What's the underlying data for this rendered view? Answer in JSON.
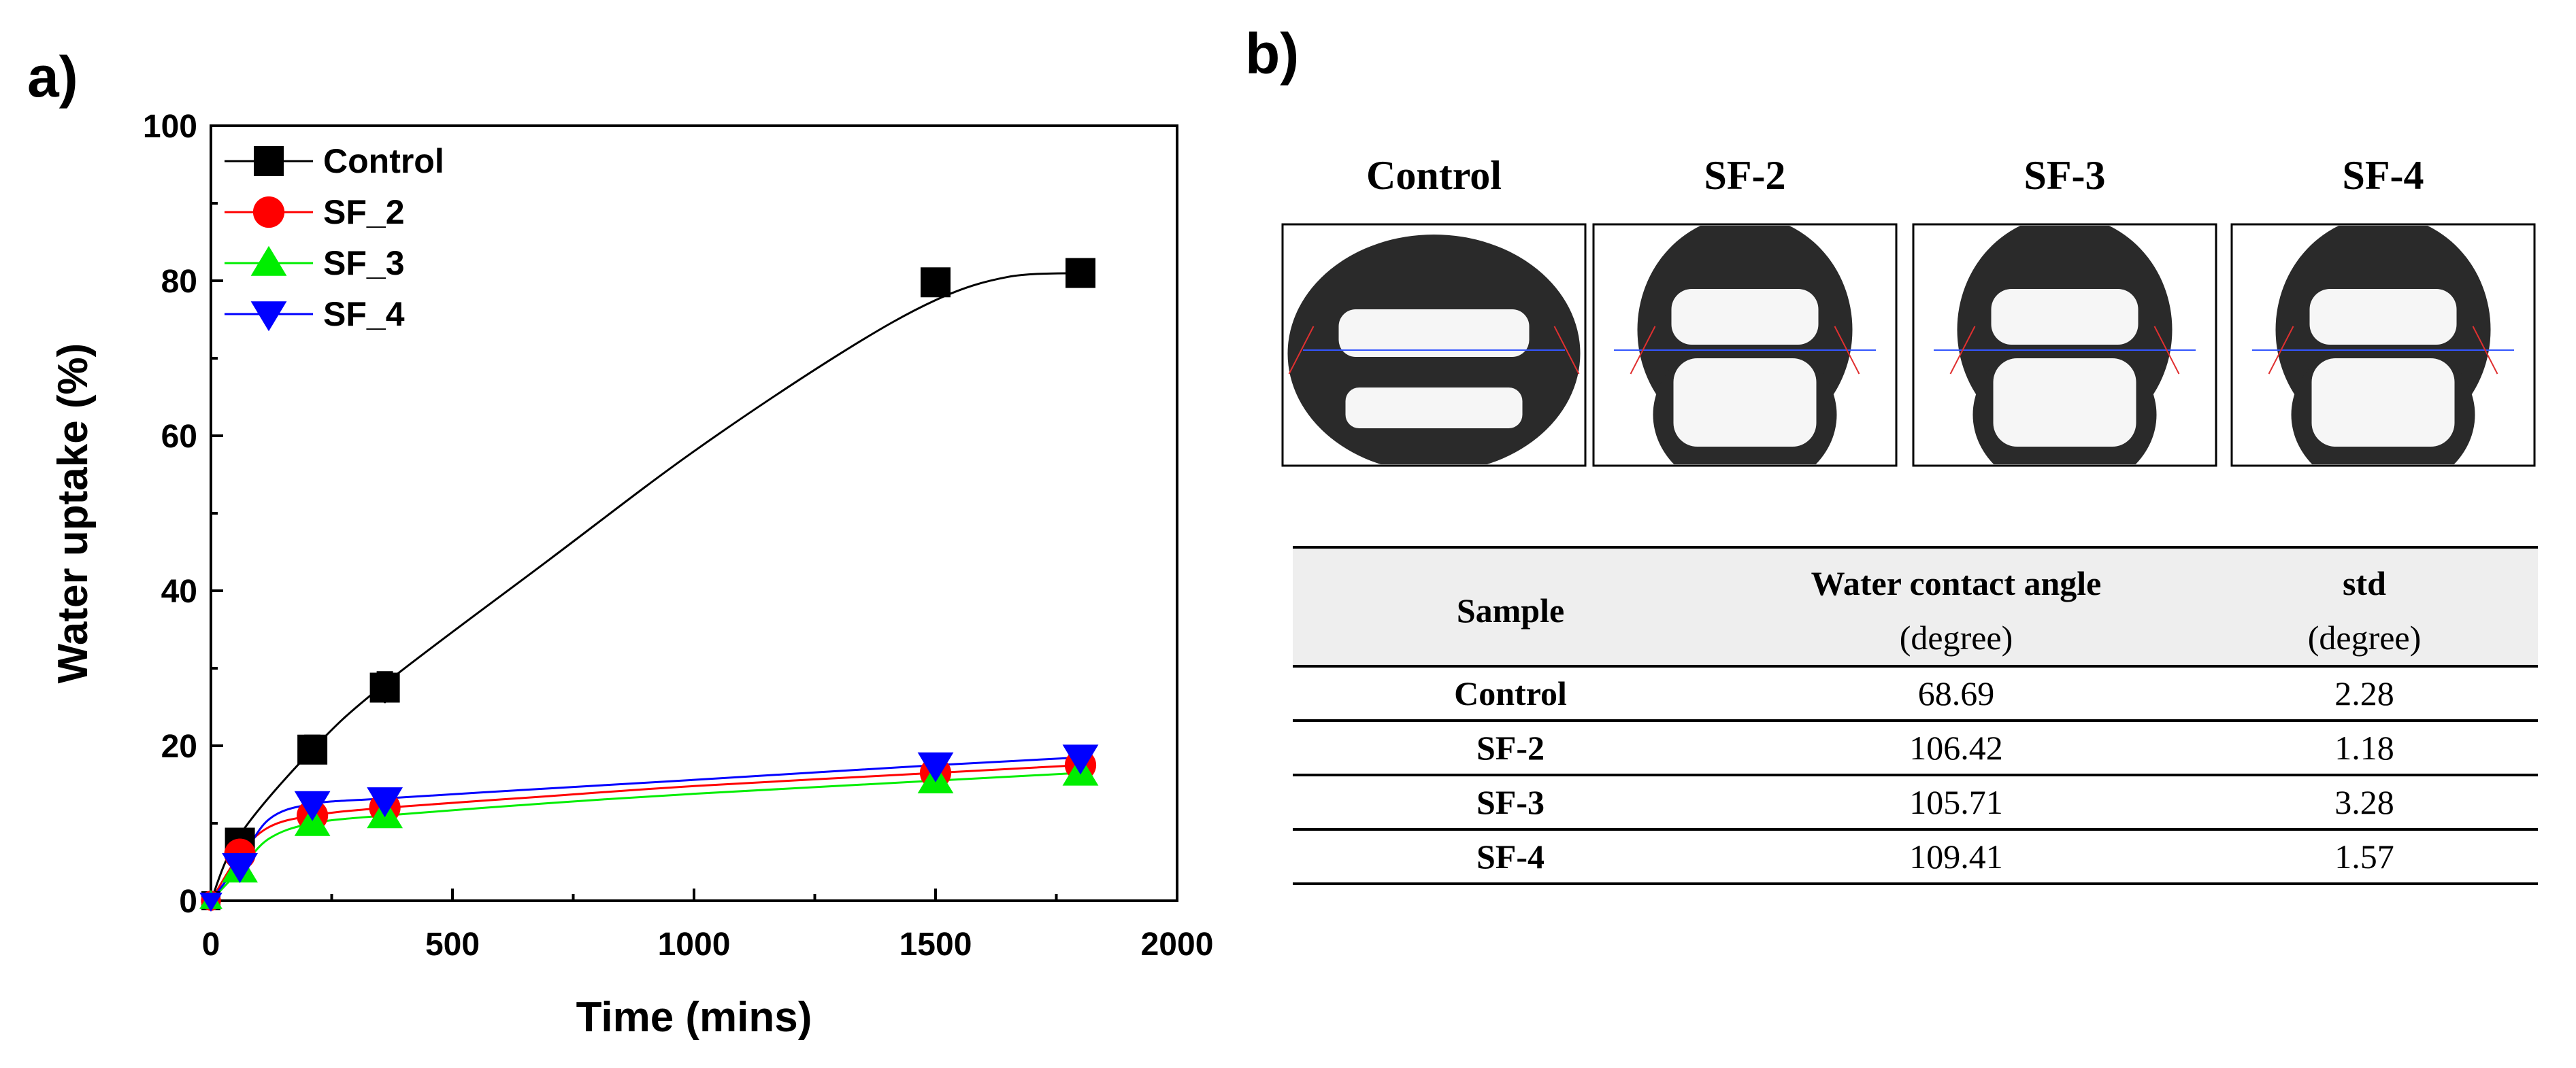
{
  "panel_a": {
    "label": "a)",
    "chart_data": {
      "type": "line",
      "xlabel": "Time (mins)",
      "ylabel": "Water uptake (%)",
      "xlim": [
        0,
        2000
      ],
      "ylim": [
        0,
        100
      ],
      "xticks": [
        0,
        500,
        1000,
        1500,
        2000
      ],
      "yticks": [
        0,
        20,
        40,
        60,
        80,
        100
      ],
      "legend_position": "top-left",
      "series": [
        {
          "name": "Control",
          "color": "#000000",
          "marker": "square",
          "x": [
            0,
            60,
            210,
            360,
            1500,
            1800
          ],
          "y": [
            0,
            7.5,
            19.5,
            27.5,
            79.8,
            81.0
          ],
          "err": [
            0,
            0.8,
            1.8,
            2.0,
            0,
            0
          ],
          "fit_x": [
            0,
            60,
            210,
            360,
            700,
            1000,
            1300,
            1500,
            1650,
            1800
          ],
          "fit_y": [
            0,
            8.5,
            19.5,
            28.0,
            44.0,
            58.0,
            70.5,
            77.5,
            80.5,
            81.0
          ]
        },
        {
          "name": "SF_2",
          "color": "#ff0000",
          "marker": "circle",
          "x": [
            0,
            60,
            210,
            360,
            1500,
            1800
          ],
          "y": [
            0,
            6.0,
            11.0,
            12.0,
            16.5,
            17.5
          ],
          "err": [
            0,
            0.6,
            0.8,
            0.8,
            0.8,
            0.8
          ],
          "fit_x": [
            0,
            60,
            120,
            210,
            360,
            700,
            1000,
            1500,
            1800
          ],
          "fit_y": [
            0,
            6.0,
            9.5,
            11.0,
            12.0,
            13.5,
            14.8,
            16.5,
            17.5
          ]
        },
        {
          "name": "SF_3",
          "color": "#00ee00",
          "marker": "triangle-up",
          "x": [
            0,
            60,
            210,
            360,
            1500,
            1800
          ],
          "y": [
            0,
            4.0,
            10.0,
            11.0,
            15.5,
            16.5
          ],
          "err": [
            0,
            0.5,
            0.8,
            0.8,
            0.8,
            0.8
          ],
          "fit_x": [
            0,
            60,
            120,
            210,
            360,
            700,
            1000,
            1500,
            1800
          ],
          "fit_y": [
            0,
            4.0,
            8.0,
            10.0,
            11.0,
            12.6,
            13.8,
            15.5,
            16.5
          ]
        },
        {
          "name": "SF_4",
          "color": "#0000ff",
          "marker": "triangle-down",
          "x": [
            0,
            60,
            210,
            360,
            1500,
            1800
          ],
          "y": [
            0,
            4.5,
            12.5,
            13.0,
            17.5,
            18.5
          ],
          "err": [
            0,
            0.6,
            0.8,
            0.8,
            0.8,
            0.8
          ],
          "fit_x": [
            0,
            60,
            120,
            210,
            360,
            700,
            1000,
            1500,
            1800
          ],
          "fit_y": [
            0,
            5.0,
            10.5,
            12.5,
            13.2,
            14.5,
            15.6,
            17.5,
            18.5
          ]
        }
      ]
    }
  },
  "panel_b": {
    "label": "b)",
    "images": [
      {
        "title": "Control",
        "angle": 68.69
      },
      {
        "title": "SF-2",
        "angle": 106.42
      },
      {
        "title": "SF-3",
        "angle": 105.71
      },
      {
        "title": "SF-4",
        "angle": 109.41
      }
    ],
    "table": {
      "header": {
        "sample": "Sample",
        "angle_title": "Water contact angle",
        "angle_unit": "(degree)",
        "std_title": "std",
        "std_unit": "(degree)"
      },
      "rows": [
        {
          "sample": "Control",
          "angle": "68.69",
          "std": "2.28"
        },
        {
          "sample": "SF-2",
          "angle": "106.42",
          "std": "1.18"
        },
        {
          "sample": "SF-3",
          "angle": "105.71",
          "std": "3.28"
        },
        {
          "sample": "SF-4",
          "angle": "109.41",
          "std": "1.57"
        }
      ]
    }
  }
}
